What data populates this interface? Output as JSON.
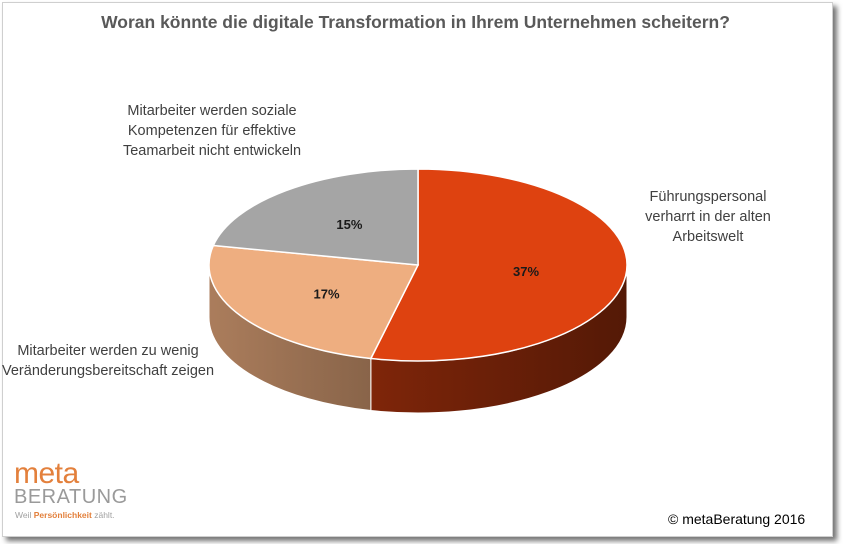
{
  "chart_data": {
    "type": "pie",
    "title": "Woran könnte die digitale Transformation in Ihrem Unternehmen scheitern?",
    "slices": [
      {
        "label": "Führungspersonal verharrt in der alten Arbeitswelt",
        "value": 37,
        "value_label": "37%",
        "color": "#DE4210"
      },
      {
        "label": "Mitarbeiter werden zu wenig Veränderungsbereitschaft zeigen",
        "value": 17,
        "value_label": "17%",
        "color": "#EEAE80"
      },
      {
        "label": "Mitarbeiter werden soziale Kompetenzen für effektive Teamarbeit nicht entwickeln",
        "value": 15,
        "value_label": "15%",
        "color": "#A5A5A5"
      }
    ]
  },
  "logo": {
    "meta": "meta",
    "beratung": "BERATUNG",
    "tagline_start": "Weil ",
    "tagline_highlight": "Persönlichkeit",
    "tagline_end": " zählt."
  },
  "copyright": "© metaBeratung 2016"
}
